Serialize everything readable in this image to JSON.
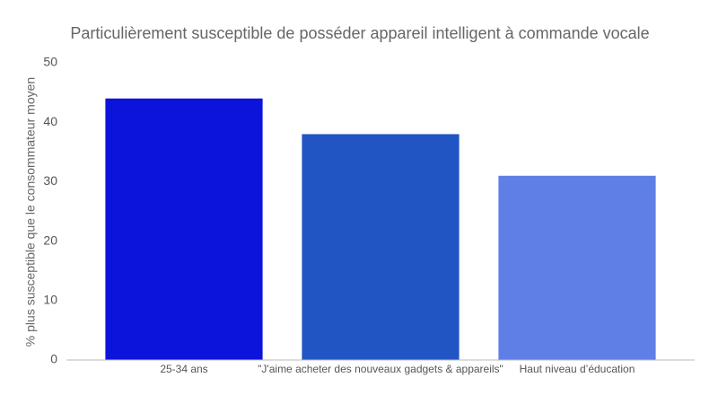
{
  "chart_data": {
    "type": "bar",
    "title": "Particulièrement susceptible de posséder appareil intelligent à commande vocale",
    "y_label": "% plus susceptible que le consommateur moyen",
    "categories": [
      "25-34 ans",
      "\"J'aime acheter des nouveaux gadgets & appareils\"",
      "Haut niveau d’éducation"
    ],
    "values": [
      44,
      38,
      31
    ],
    "colors": [
      "#0c14dc",
      "#2155c4",
      "#5f7fe6"
    ],
    "ylim": [
      0,
      50
    ],
    "yticks": [
      0,
      10,
      20,
      30,
      40,
      50
    ],
    "grid": false
  }
}
